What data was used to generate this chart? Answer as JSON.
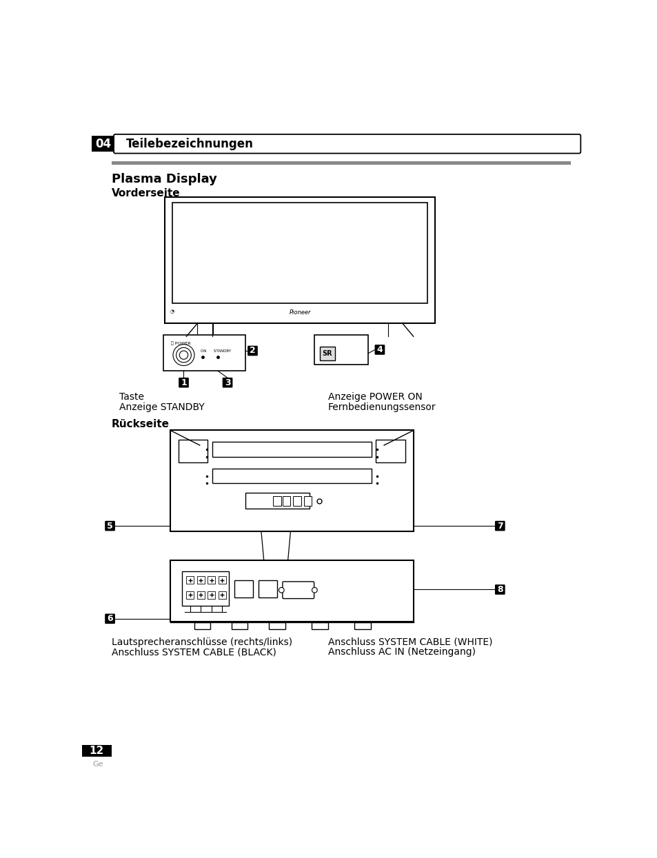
{
  "title_num": "04",
  "title_text": "Teilebezeichnungen",
  "section_title": "Plasma Display",
  "subsection1": "Vorderseite",
  "subsection2": "Rückseite",
  "label1_line1": "Taste",
  "label1_line2": "Anzeige STANDBY",
  "label2_line1": "Anzeige POWER ON",
  "label2_line2": "Fernbedienungssensor",
  "label3_line1": "Lautsprecheranschlüsse (rechts/links)",
  "label3_line2": "Anschluss SYSTEM CABLE (BLACK)",
  "label4_line1": "Anschluss SYSTEM CABLE (WHITE)",
  "label4_line2": "Anschluss AC IN (Netzeingang)",
  "page_num": "12",
  "page_lang": "Ge",
  "bg_color": "#ffffff"
}
